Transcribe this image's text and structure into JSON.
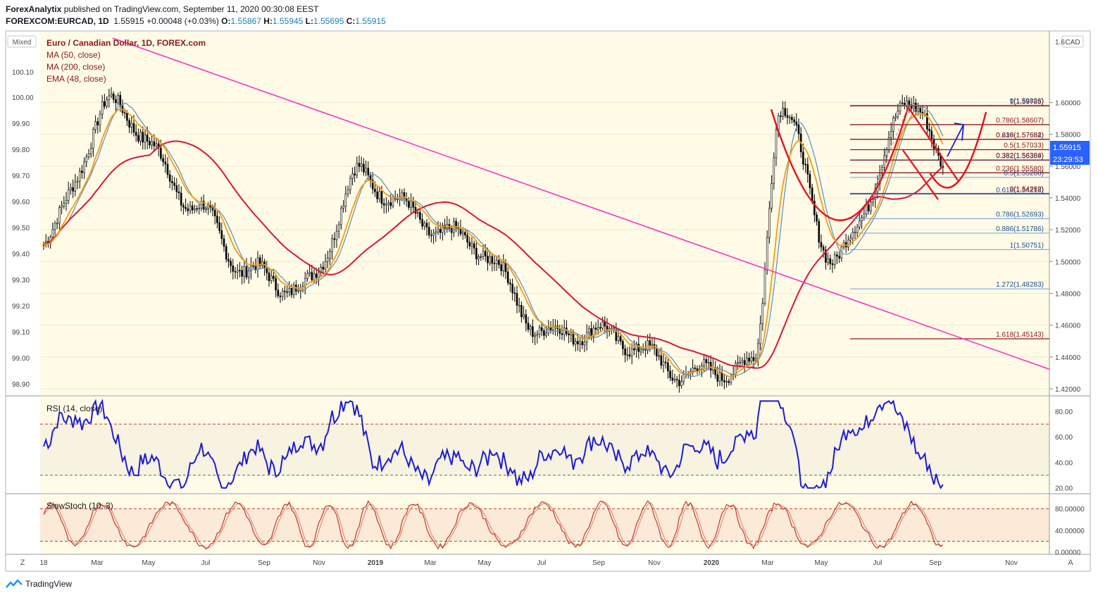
{
  "header": {
    "publisher": "ForexAnalytix",
    "published_text": "published on TradingView.com, September 11, 2020 00:30:08 EEST",
    "symbol": "FOREXCOM:EURCAD, 1D",
    "price": "1.55915",
    "change": "+0.00048 (+0.03%)",
    "o_label": "O:",
    "o": "1.55867",
    "h_label": "H:",
    "h": "1.55945",
    "l_label": "L:",
    "l": "1.55695",
    "c_label": "C:",
    "c": "1.55915"
  },
  "legend": {
    "mixed": "Mixed",
    "title": "Euro / Canadian Dollar, 1D, FOREX.com",
    "ma50": "MA (50, close)",
    "ma200": "MA (200, close)",
    "ema48": "EMA (48, close)"
  },
  "right_axis": {
    "currency": "CAD",
    "price_tag": "1.55915",
    "countdown": "23:29:53"
  },
  "colors": {
    "background": "#fffbe6",
    "candles": "#000000",
    "ma50": "#5b8db8",
    "ma200": "#dc143c",
    "ema48": "#f39c12",
    "trendline": "#ff33cc",
    "pattern": "#e8141c",
    "rsi": "#1c1cd6",
    "stoch": "#c0392b",
    "fib_blue": "#1a4f9c",
    "fib_red": "#8b1a1a"
  },
  "chart_data": [
    {
      "type": "candlestick",
      "title": "Euro / Canadian Dollar, 1D, FOREX.com",
      "x_ticks": [
        "18",
        "Mar",
        "May",
        "Jul",
        "Sep",
        "Nov",
        "2019",
        "Mar",
        "May",
        "Jul",
        "Sep",
        "Nov",
        "2020",
        "Mar",
        "May",
        "Jul",
        "Sep",
        "Nov"
      ],
      "left_ticks": [
        "100.10",
        "100.00",
        "99.90",
        "99.80",
        "99.70",
        "99.60",
        "99.50",
        "99.40",
        "99.30",
        "99.20",
        "99.10",
        "99.00",
        "98.90"
      ],
      "left_top_label": "100.10",
      "right_ticks": [
        "1.60000",
        "1.58000",
        "1.56000",
        "1.54000",
        "1.52000",
        "1.50000",
        "1.48000",
        "1.46000",
        "1.44000",
        "1.42000"
      ],
      "right_top_label": "1.6",
      "ylim": [
        1.416,
        1.6445
      ],
      "series_key_points": [
        {
          "date": "2018-01",
          "price": 1.508
        },
        {
          "date": "2018-03",
          "price": 1.605
        },
        {
          "date": "2018-06",
          "price": 1.53
        },
        {
          "date": "2018-08",
          "price": 1.5
        },
        {
          "date": "2018-10",
          "price": 1.478
        },
        {
          "date": "2018-12",
          "price": 1.556
        },
        {
          "date": "2019-04",
          "price": 1.505
        },
        {
          "date": "2019-07",
          "price": 1.458
        },
        {
          "date": "2019-09",
          "price": 1.446
        },
        {
          "date": "2020-02",
          "price": 1.427
        },
        {
          "date": "2020-03",
          "price": 1.598
        },
        {
          "date": "2020-05",
          "price": 1.507
        },
        {
          "date": "2020-08",
          "price": 1.598
        },
        {
          "date": "2020-09",
          "price": 1.559
        }
      ],
      "fib_levels_blue": [
        {
          "label": "0(1.59826)",
          "value": 1.59826
        },
        {
          "label": "0.236(1.57684)",
          "value": 1.57684
        },
        {
          "label": "0.382(1.56359)",
          "value": 1.56359
        },
        {
          "label": "0.5(1.55288)",
          "value": 1.55288
        },
        {
          "label": "0.618(1.54218)",
          "value": 1.54218
        },
        {
          "label": "0.786(1.52693)",
          "value": 1.52693
        },
        {
          "label": "0.886(1.51786)",
          "value": 1.51786
        },
        {
          "label": "1(1.50751)",
          "value": 1.50751
        },
        {
          "label": "1.272(1.48283)",
          "value": 1.48283
        }
      ],
      "fib_levels_red": [
        {
          "label": "1(1.59785)",
          "value": 1.59785
        },
        {
          "label": "0.786(1.58607)",
          "value": 1.58607
        },
        {
          "label": "0.618(1.57682)",
          "value": 1.57682
        },
        {
          "label": "0.5(1.57033)",
          "value": 1.57033
        },
        {
          "label": "0.382(1.56384)",
          "value": 1.56384
        },
        {
          "label": "0.236(1.55580)",
          "value": 1.5558
        },
        {
          "label": "0(1.54282)",
          "value": 1.54282
        },
        {
          "label": "1.618(1.45143)",
          "value": 1.45143
        }
      ]
    },
    {
      "type": "line",
      "title": "RSI (14, close)",
      "ticks": [
        "80.00",
        "60.00",
        "40.00",
        "20.00"
      ],
      "ylim": [
        16,
        91
      ],
      "bands": [
        30,
        70
      ]
    },
    {
      "type": "line",
      "title": "SlowStoch (10, 3)",
      "ticks": [
        "80.00000",
        "40.00000",
        "0.00000"
      ],
      "ylim": [
        -3,
        105
      ],
      "bands": [
        20,
        80
      ]
    }
  ],
  "scale_buttons": {
    "left": "Z",
    "right": "A"
  },
  "footer": {
    "brand": "TradingView"
  }
}
